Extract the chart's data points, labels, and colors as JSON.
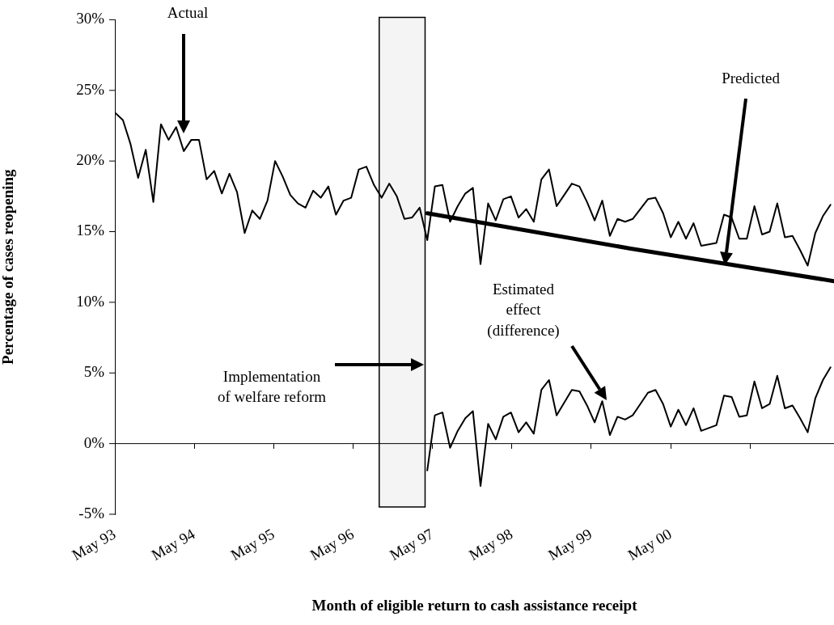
{
  "chart_data": {
    "type": "line",
    "xlabel": "Month of eligible return to cash assistance receipt",
    "ylabel": "Percentage of cases reopening",
    "xlim": [
      "1993-05-01",
      "2002-05-22"
    ],
    "xticks": [
      {
        "value": "1993-05-01",
        "label": "May 93"
      },
      {
        "value": "1994-05-01",
        "label": "May 94"
      },
      {
        "value": "1995-05-01",
        "label": "May 95"
      },
      {
        "value": "1996-05-01",
        "label": "May 96"
      },
      {
        "value": "1997-05-01",
        "label": "May 97"
      },
      {
        "value": "1998-05-01",
        "label": "May 98"
      },
      {
        "value": "1999-05-01",
        "label": "May 99"
      },
      {
        "value": "2000-05-01",
        "label": "May 00"
      },
      {
        "value": "2001-05-01",
        "label": null
      }
    ],
    "ylim": [
      -5,
      30
    ],
    "yticks": [
      {
        "value": -5,
        "label": "-5%"
      },
      {
        "value": 0,
        "label": "0%"
      },
      {
        "value": 5,
        "label": "5%"
      },
      {
        "value": 10,
        "label": "10%"
      },
      {
        "value": 15,
        "label": "15%"
      },
      {
        "value": 20,
        "label": "20%"
      },
      {
        "value": 25,
        "label": "25%"
      },
      {
        "value": 30,
        "label": "30%"
      }
    ],
    "grid": false,
    "legend": false,
    "marker": "none",
    "line_style": "solid",
    "series": [
      {
        "name": "Actual",
        "color": "#000000",
        "x": [
          "1993-05-03",
          "1993-06-07",
          "1993-07-12",
          "1993-08-16",
          "1993-09-20",
          "1993-10-25",
          "1993-11-29",
          "1994-01-03",
          "1994-02-07",
          "1994-03-14",
          "1994-04-18",
          "1994-05-23",
          "1994-06-27",
          "1994-08-01",
          "1994-09-05",
          "1994-10-10",
          "1994-11-14",
          "1994-12-19",
          "1995-01-23",
          "1995-02-27",
          "1995-04-03",
          "1995-05-08",
          "1995-06-12",
          "1995-07-17",
          "1995-08-21",
          "1995-09-25",
          "1995-10-30",
          "1995-12-04",
          "1996-01-08",
          "1996-02-12",
          "1996-03-18",
          "1996-04-22",
          "1996-05-27",
          "1996-07-01",
          "1996-08-05",
          "1996-09-09",
          "1996-10-14",
          "1996-11-18",
          "1996-12-23",
          "1997-01-27",
          "1997-03-03",
          "1997-04-07",
          "1997-05-12",
          "1997-06-16",
          "1997-07-21",
          "1997-08-25",
          "1997-09-29",
          "1997-11-03",
          "1997-12-08",
          "1998-01-12",
          "1998-02-16",
          "1998-03-23",
          "1998-04-27",
          "1998-06-01",
          "1998-07-06",
          "1998-08-10",
          "1998-09-14",
          "1998-10-19",
          "1998-11-23",
          "1998-12-28",
          "1999-02-01",
          "1999-03-08",
          "1999-04-12",
          "1999-05-17",
          "1999-06-21",
          "1999-07-26",
          "1999-08-30",
          "1999-10-04",
          "1999-11-08",
          "1999-12-13",
          "2000-01-17",
          "2000-02-21",
          "2000-03-27",
          "2000-05-01",
          "2000-06-05",
          "2000-07-10",
          "2000-08-14",
          "2000-09-18",
          "2000-10-23",
          "2000-11-27",
          "2001-01-01",
          "2001-02-05",
          "2001-03-12",
          "2001-04-16",
          "2001-05-21",
          "2001-06-25",
          "2001-07-30",
          "2001-09-03",
          "2001-10-08",
          "2001-11-12",
          "2001-12-17",
          "2002-01-21",
          "2002-02-25",
          "2002-04-01",
          "2002-05-06"
        ],
        "values": [
          23.4,
          22.9,
          21.2,
          18.8,
          20.8,
          17.1,
          22.6,
          21.5,
          22.4,
          20.7,
          21.5,
          21.5,
          18.7,
          19.3,
          17.7,
          19.1,
          17.8,
          14.9,
          16.5,
          15.9,
          17.2,
          20.0,
          18.9,
          17.6,
          17.0,
          16.7,
          17.9,
          17.4,
          18.2,
          16.2,
          17.2,
          17.4,
          19.4,
          19.6,
          18.3,
          17.4,
          18.4,
          17.5,
          15.9,
          16.0,
          16.7,
          14.4,
          18.2,
          18.3,
          15.7,
          16.8,
          17.7,
          18.1,
          12.7,
          17.0,
          15.8,
          17.3,
          17.5,
          16.0,
          16.6,
          15.7,
          18.7,
          19.4,
          16.8,
          17.6,
          18.4,
          18.2,
          17.1,
          15.8,
          17.2,
          14.7,
          15.9,
          15.7,
          15.9,
          16.6,
          17.3,
          17.4,
          16.3,
          14.6,
          15.7,
          14.5,
          15.6,
          14.0,
          14.1,
          14.2,
          16.2,
          16.0,
          14.5,
          14.5,
          16.8,
          14.8,
          15.0,
          17.0,
          14.6,
          14.7,
          13.7,
          12.6,
          14.9,
          16.1,
          16.9
        ]
      },
      {
        "name": "Predicted",
        "color": "#000000",
        "x": [
          "1997-04-07",
          "1999-10-30",
          "2002-05-22"
        ],
        "values": [
          16.3,
          13.8,
          11.5
        ]
      },
      {
        "name": "Estimated effect (difference)",
        "color": "#000000",
        "x": [
          "1997-04-07",
          "1997-05-12",
          "1997-06-16",
          "1997-07-21",
          "1997-08-25",
          "1997-09-29",
          "1997-11-03",
          "1997-12-08",
          "1998-01-12",
          "1998-02-16",
          "1998-03-23",
          "1998-04-27",
          "1998-06-01",
          "1998-07-06",
          "1998-08-10",
          "1998-09-14",
          "1998-10-19",
          "1998-11-23",
          "1998-12-28",
          "1999-02-01",
          "1999-03-08",
          "1999-04-12",
          "1999-05-17",
          "1999-06-21",
          "1999-07-26",
          "1999-08-30",
          "1999-10-04",
          "1999-11-08",
          "1999-12-13",
          "2000-01-17",
          "2000-02-21",
          "2000-03-27",
          "2000-05-01",
          "2000-06-05",
          "2000-07-10",
          "2000-08-14",
          "2000-09-18",
          "2000-10-23",
          "2000-11-27",
          "2001-01-01",
          "2001-02-05",
          "2001-03-12",
          "2001-04-16",
          "2001-05-21",
          "2001-06-25",
          "2001-07-30",
          "2001-09-03",
          "2001-10-08",
          "2001-11-12",
          "2001-12-17",
          "2002-01-21",
          "2002-02-25",
          "2002-04-01",
          "2002-05-06"
        ],
        "values": [
          -1.9,
          2.0,
          2.2,
          -0.3,
          0.9,
          1.8,
          2.3,
          -3.0,
          1.4,
          0.3,
          1.9,
          2.2,
          0.8,
          1.5,
          0.7,
          3.8,
          4.5,
          2.0,
          2.9,
          3.8,
          3.7,
          2.7,
          1.5,
          3.0,
          0.6,
          1.9,
          1.7,
          2.0,
          2.8,
          3.6,
          3.8,
          2.8,
          1.2,
          2.4,
          1.3,
          2.5,
          0.9,
          1.1,
          1.3,
          3.4,
          3.3,
          1.9,
          2.0,
          4.4,
          2.5,
          2.8,
          4.8,
          2.5,
          2.7,
          1.8,
          0.8,
          3.2,
          4.5,
          5.4
        ]
      }
    ],
    "ref_lines": [
      {
        "axis": "y",
        "value": 0,
        "color": "#000000"
      }
    ],
    "bands": [
      {
        "axis": "x",
        "from": "1996-08-29",
        "to": "1997-03-28",
        "color": "#f4f4f4",
        "label": "Implementation of welfare reform"
      }
    ]
  }
}
